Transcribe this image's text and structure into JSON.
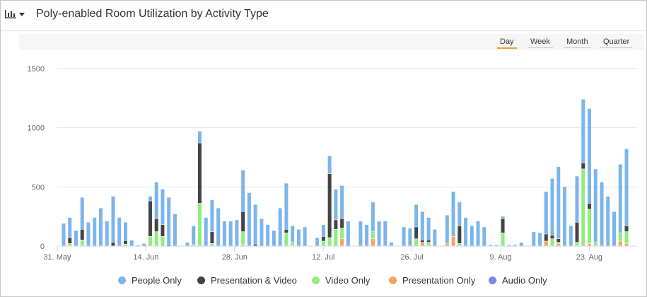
{
  "header": {
    "title": "Poly-enabled Room Utilization by Activity Type",
    "chart_icon": "bar-chart-icon",
    "menu_icon": "caret-down-icon"
  },
  "range_buttons": [
    {
      "label": "Day",
      "active": true
    },
    {
      "label": "Week",
      "active": false
    },
    {
      "label": "Month",
      "active": false
    },
    {
      "label": "Quarter",
      "active": false
    }
  ],
  "colors": {
    "accent": "#f0a030"
  },
  "chart_data": {
    "type": "bar",
    "stacked": true,
    "title": "Poly-enabled Room Utilization by Activity Type",
    "ylim": [
      0,
      1500
    ],
    "yticks": [
      "0",
      "500",
      "1000",
      "1500"
    ],
    "xticks": [
      "31. May",
      "14. Jun",
      "28. Jun",
      "12. Jul",
      "26. Jul",
      "9. Aug",
      "23. Aug"
    ],
    "grid": true,
    "legend_position": "bottom",
    "series": [
      {
        "name": "People Only",
        "color": "#7cb5ec",
        "values": [
          190,
          170,
          130,
          270,
          200,
          240,
          320,
          210,
          390,
          240,
          155,
          50,
          5,
          20,
          40,
          310,
          300,
          400,
          270,
          0,
          30,
          160,
          100,
          240,
          270,
          320,
          210,
          210,
          220,
          350,
          450,
          335,
          230,
          180,
          130,
          320,
          390,
          140,
          140,
          160,
          0,
          70,
          100,
          150,
          260,
          280,
          210,
          0,
          210,
          180,
          250,
          210,
          210,
          30,
          0,
          160,
          150,
          190,
          240,
          190,
          140,
          0,
          240,
          380,
          200,
          240,
          170,
          210,
          160,
          10,
          10,
          20,
          5,
          10,
          30,
          0,
          120,
          110,
          360,
          480,
          610,
          500,
          170,
          390,
          540,
          800,
          620,
          540,
          420,
          290,
          580,
          650
        ]
      },
      {
        "name": "Presentation & Video",
        "color": "#434348",
        "values": [
          0,
          50,
          0,
          90,
          0,
          0,
          0,
          0,
          30,
          0,
          30,
          0,
          0,
          0,
          300,
          110,
          100,
          10,
          0,
          0,
          0,
          0,
          510,
          0,
          100,
          0,
          0,
          0,
          0,
          170,
          0,
          15,
          0,
          0,
          0,
          0,
          30,
          0,
          0,
          0,
          0,
          0,
          40,
          540,
          80,
          80,
          0,
          0,
          0,
          0,
          0,
          0,
          0,
          0,
          0,
          0,
          0,
          100,
          20,
          20,
          0,
          0,
          0,
          0,
          150,
          0,
          0,
          0,
          0,
          0,
          0,
          120,
          0,
          0,
          0,
          0,
          0,
          0,
          60,
          30,
          30,
          0,
          0,
          170,
          50,
          50,
          0,
          0,
          0,
          0,
          0,
          50
        ]
      },
      {
        "name": "Video Only",
        "color": "#90ed7d",
        "values": [
          0,
          20,
          0,
          50,
          0,
          0,
          0,
          0,
          0,
          0,
          15,
          0,
          0,
          0,
          80,
          120,
          80,
          0,
          0,
          0,
          0,
          10,
          360,
          0,
          20,
          0,
          0,
          0,
          0,
          110,
          0,
          0,
          0,
          0,
          0,
          0,
          100,
          30,
          0,
          0,
          0,
          0,
          40,
          70,
          140,
          90,
          0,
          0,
          0,
          0,
          60,
          0,
          0,
          0,
          0,
          0,
          0,
          60,
          0,
          30,
          0,
          0,
          0,
          0,
          20,
          0,
          0,
          0,
          0,
          0,
          0,
          110,
          0,
          0,
          0,
          0,
          0,
          0,
          0,
          60,
          10,
          0,
          0,
          30,
          650,
          290,
          30,
          0,
          0,
          0,
          70,
          100
        ]
      },
      {
        "name": "Presentation Only",
        "color": "#f7a35c",
        "values": [
          0,
          0,
          0,
          0,
          0,
          0,
          0,
          0,
          0,
          0,
          0,
          0,
          0,
          0,
          0,
          0,
          0,
          0,
          0,
          0,
          0,
          0,
          0,
          0,
          0,
          0,
          0,
          0,
          0,
          10,
          0,
          0,
          0,
          0,
          0,
          0,
          10,
          0,
          0,
          0,
          0,
          0,
          0,
          0,
          0,
          60,
          0,
          0,
          0,
          0,
          60,
          0,
          0,
          0,
          0,
          0,
          0,
          0,
          30,
          0,
          0,
          0,
          20,
          80,
          0,
          0,
          0,
          0,
          0,
          0,
          0,
          0,
          0,
          0,
          0,
          0,
          0,
          0,
          40,
          0,
          20,
          0,
          0,
          0,
          0,
          20,
          0,
          0,
          0,
          0,
          40,
          20
        ]
      },
      {
        "name": "Audio Only",
        "color": "#8085e9",
        "values": [
          0,
          0,
          0,
          0,
          0,
          0,
          0,
          0,
          0,
          0,
          0,
          0,
          0,
          0,
          0,
          0,
          0,
          0,
          0,
          0,
          0,
          0,
          0,
          0,
          0,
          0,
          0,
          0,
          0,
          0,
          0,
          0,
          0,
          0,
          0,
          0,
          0,
          0,
          0,
          0,
          0,
          0,
          0,
          0,
          0,
          0,
          0,
          0,
          0,
          0,
          0,
          0,
          0,
          0,
          0,
          0,
          0,
          0,
          0,
          0,
          0,
          0,
          0,
          0,
          0,
          0,
          0,
          0,
          0,
          0,
          0,
          0,
          0,
          0,
          0,
          0,
          0,
          0,
          0,
          0,
          0,
          0,
          0,
          0,
          0,
          0,
          0,
          0,
          0,
          0,
          0,
          0
        ]
      }
    ]
  }
}
